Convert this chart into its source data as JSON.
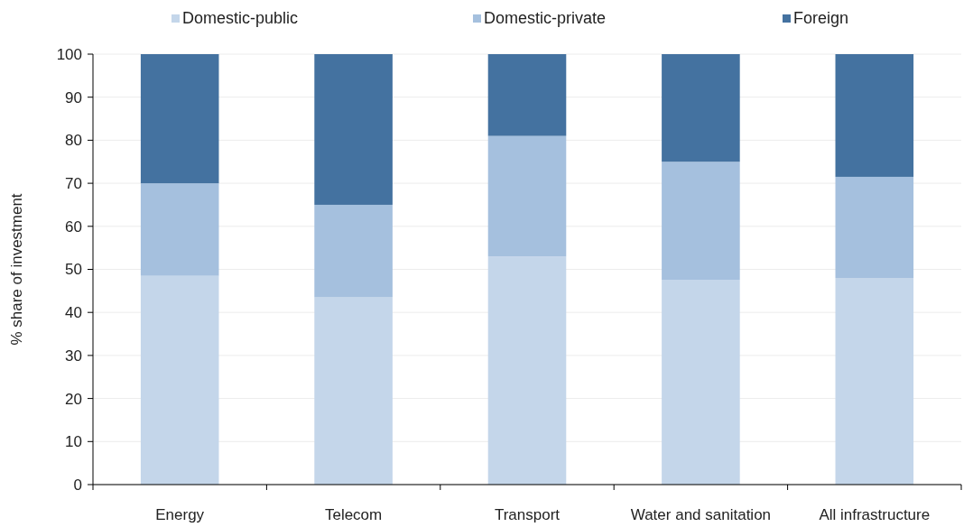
{
  "chart_data": {
    "type": "bar",
    "stacked": true,
    "ylabel": "% share of investment",
    "categories": [
      "Energy",
      "Telecom",
      "Transport",
      "Water and sanitation",
      "All infrastructure"
    ],
    "series": [
      {
        "name": "Domestic-public",
        "color": "#c4d6ea",
        "values": [
          48.5,
          43.5,
          53,
          47.5,
          48
        ]
      },
      {
        "name": "Domestic-private",
        "color": "#a5c0de",
        "values": [
          21.5,
          21.5,
          28,
          27.5,
          23.5
        ]
      },
      {
        "name": "Foreign",
        "color": "#4472a0",
        "values": [
          30,
          35,
          19,
          25,
          28.5
        ]
      }
    ],
    "ylim": [
      0,
      100
    ],
    "yticks": [
      0,
      10,
      20,
      30,
      40,
      50,
      60,
      70,
      80,
      90,
      100
    ],
    "grid": "y",
    "legend": "top"
  }
}
